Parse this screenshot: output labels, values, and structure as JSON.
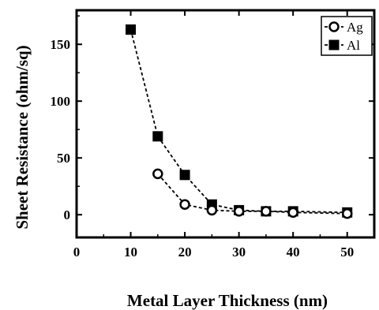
{
  "chart_data": {
    "type": "line",
    "title": "",
    "xlabel": "Metal Layer Thickness (nm)",
    "ylabel": "Sheet Resistance (ohm/sq)",
    "xlim": [
      0,
      55
    ],
    "ylim": [
      -20,
      180
    ],
    "xticks": [
      0,
      10,
      20,
      30,
      40,
      50
    ],
    "yticks": [
      0,
      50,
      100,
      150
    ],
    "grid": false,
    "legend_position": "top-right",
    "series": [
      {
        "name": "Ag",
        "marker": "open-circle",
        "line": "dashed",
        "color": "#000000",
        "x": [
          15,
          20,
          25,
          30,
          35,
          40,
          50
        ],
        "y": [
          36,
          9,
          4,
          3,
          3,
          2,
          1
        ]
      },
      {
        "name": "Al",
        "marker": "filled-square",
        "line": "dashed",
        "color": "#000000",
        "x": [
          10,
          15,
          20,
          25,
          30,
          35,
          40,
          50
        ],
        "y": [
          163,
          69,
          35,
          9,
          4,
          3,
          3,
          2
        ]
      }
    ]
  }
}
